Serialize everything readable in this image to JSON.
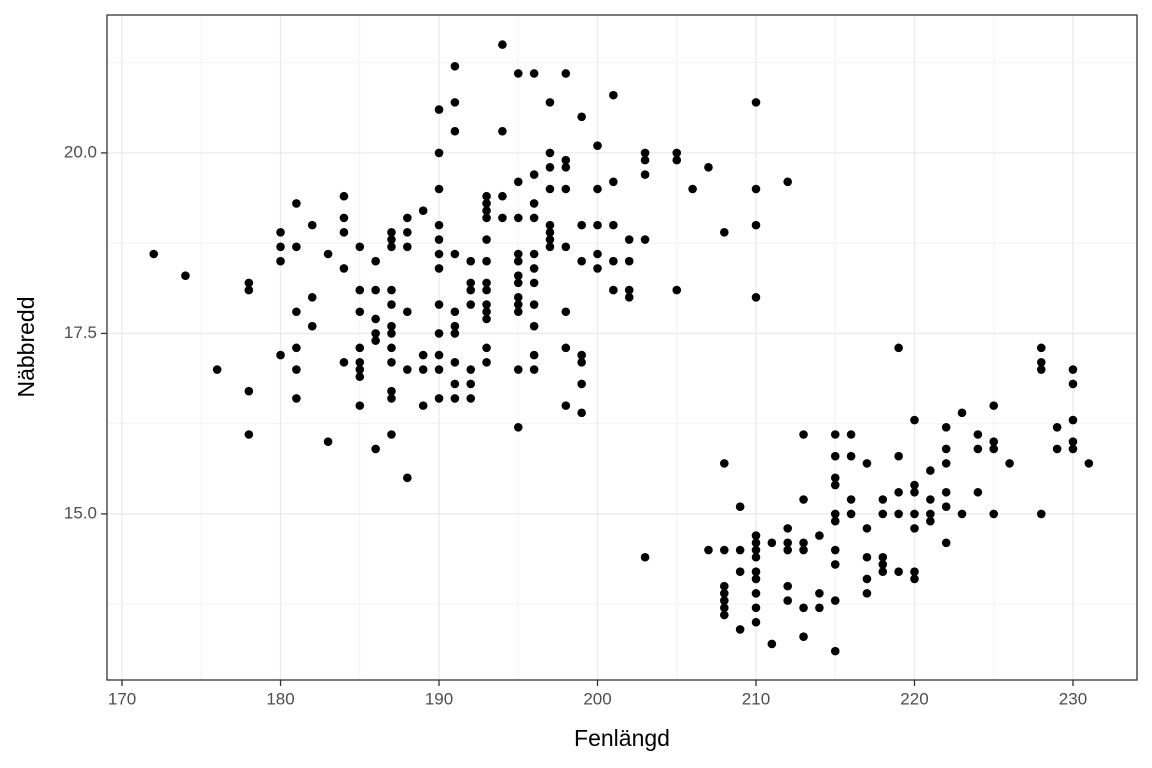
{
  "chart_data": {
    "type": "scatter",
    "x_label": "Fenlängd",
    "y_label": "Näbbredd",
    "xlim": [
      169.05,
      234.04
    ],
    "ylim": [
      12.7,
      21.91
    ],
    "xticks": [
      170,
      180,
      190,
      200,
      210,
      220,
      230
    ],
    "yticks": [
      {
        "value": 15,
        "label": "15.0"
      },
      17.5,
      {
        "value": 20,
        "label": "20.0"
      }
    ],
    "xminor": [
      175,
      185,
      195,
      205,
      215,
      225
    ],
    "yminor": [
      13.75,
      16.25,
      18.75,
      21.25
    ],
    "grid": true,
    "color": "#000000",
    "series": [
      {
        "x": [
          172,
          174,
          176,
          178,
          178,
          178,
          178,
          180,
          180,
          180,
          180,
          181,
          181,
          181,
          181,
          181,
          181,
          182,
          182,
          182,
          183,
          183,
          184,
          184,
          184,
          184,
          184,
          185,
          185,
          185,
          185,
          185,
          185,
          185,
          185,
          186,
          186,
          186,
          186,
          186,
          186,
          187,
          187,
          187,
          187,
          187,
          187,
          187,
          187,
          187,
          187,
          187,
          187,
          188,
          188,
          188,
          188,
          188,
          188,
          189,
          189,
          189,
          189,
          190,
          190,
          190,
          190,
          190,
          190,
          190,
          190,
          190,
          190,
          190,
          190,
          191,
          191,
          191,
          191,
          191,
          191,
          191,
          191,
          191,
          191,
          192,
          192,
          192,
          192,
          192,
          192,
          192,
          193,
          193,
          193,
          193,
          193,
          193,
          193,
          193,
          193,
          193,
          193,
          193,
          193,
          194,
          194,
          194,
          194,
          195,
          195,
          195,
          195,
          195,
          195,
          195,
          195,
          195,
          195,
          195,
          195,
          196,
          196,
          196,
          196,
          196,
          196,
          196,
          196,
          196,
          196,
          196,
          197,
          197,
          197,
          197,
          197,
          197,
          197,
          197,
          198,
          198,
          198,
          198,
          198,
          198,
          198,
          198,
          199,
          199,
          199,
          199,
          199,
          199,
          199,
          200,
          200,
          200,
          200,
          200,
          201,
          201,
          201,
          201,
          201,
          202,
          202,
          202,
          202,
          203,
          203,
          203,
          203,
          203,
          205,
          205,
          205,
          206,
          207,
          207,
          208,
          208,
          208,
          208,
          208,
          208,
          208,
          208,
          209,
          209,
          209,
          209,
          210,
          210,
          210,
          210,
          210,
          210,
          210,
          210,
          210,
          210,
          210,
          210,
          210,
          211,
          211,
          212,
          212,
          212,
          212,
          212,
          212,
          213,
          213,
          213,
          213,
          213,
          213,
          214,
          214,
          214,
          215,
          215,
          215,
          215,
          215,
          215,
          215,
          215,
          215,
          215,
          216,
          216,
          216,
          216,
          217,
          217,
          217,
          217,
          217,
          218,
          218,
          218,
          218,
          218,
          219,
          219,
          219,
          219,
          219,
          220,
          220,
          220,
          220,
          220,
          220,
          220,
          221,
          221,
          221,
          221,
          222,
          222,
          222,
          222,
          222,
          222,
          223,
          223,
          224,
          224,
          224,
          225,
          225,
          225,
          225,
          226,
          228,
          228,
          228,
          228,
          229,
          229,
          230,
          230,
          230,
          230,
          230,
          231
        ],
        "y": [
          18.6,
          18.3,
          17.0,
          18.2,
          18.1,
          16.7,
          16.1,
          18.9,
          18.7,
          18.5,
          17.2,
          19.3,
          18.7,
          17.8,
          17.3,
          17.0,
          16.6,
          19.0,
          18.0,
          17.6,
          18.6,
          16.0,
          19.4,
          19.1,
          18.9,
          18.4,
          17.1,
          18.7,
          18.1,
          17.8,
          17.3,
          17.1,
          17.0,
          16.9,
          16.5,
          18.5,
          18.1,
          17.7,
          17.5,
          17.4,
          15.9,
          18.9,
          18.8,
          18.7,
          18.1,
          17.9,
          17.6,
          17.5,
          17.3,
          17.1,
          16.7,
          16.6,
          16.1,
          19.1,
          18.9,
          18.7,
          17.8,
          17.0,
          15.5,
          19.2,
          17.2,
          17.0,
          16.5,
          20.6,
          20.0,
          19.5,
          19.0,
          18.8,
          18.6,
          18.4,
          17.9,
          17.5,
          17.2,
          17.0,
          16.6,
          21.2,
          20.7,
          20.3,
          18.6,
          17.8,
          17.6,
          17.5,
          17.1,
          16.8,
          16.6,
          18.5,
          18.2,
          18.1,
          17.9,
          17.0,
          16.8,
          16.6,
          19.4,
          19.3,
          19.2,
          19.1,
          18.8,
          18.5,
          18.2,
          18.1,
          17.9,
          17.8,
          17.7,
          17.3,
          17.1,
          21.5,
          20.3,
          19.4,
          19.1,
          21.1,
          19.6,
          19.1,
          18.6,
          18.5,
          18.3,
          18.2,
          18.0,
          17.9,
          17.8,
          17.0,
          16.2,
          21.1,
          19.7,
          19.3,
          19.1,
          18.6,
          18.4,
          18.2,
          17.9,
          17.6,
          17.2,
          17.0,
          20.7,
          20.0,
          19.8,
          19.5,
          19.0,
          18.9,
          18.8,
          18.7,
          21.1,
          19.9,
          19.8,
          19.5,
          18.7,
          17.8,
          17.3,
          16.5,
          20.5,
          19.0,
          18.5,
          17.2,
          17.1,
          16.8,
          16.4,
          20.1,
          19.5,
          19.0,
          18.6,
          18.4,
          20.8,
          19.6,
          19.0,
          18.5,
          18.1,
          18.8,
          18.5,
          18.1,
          18.0,
          20.0,
          19.9,
          19.7,
          18.8,
          14.4,
          20.0,
          19.9,
          18.1,
          19.5,
          19.8,
          14.5,
          18.9,
          15.7,
          14.5,
          14.0,
          13.9,
          13.8,
          13.7,
          13.6,
          15.1,
          14.5,
          14.2,
          13.4,
          20.7,
          19.5,
          19.0,
          18.0,
          14.7,
          14.6,
          14.5,
          14.4,
          14.2,
          14.1,
          13.9,
          13.7,
          13.5,
          14.6,
          13.2,
          19.6,
          14.8,
          14.6,
          14.5,
          14.0,
          13.8,
          16.1,
          15.2,
          14.6,
          14.5,
          13.7,
          13.3,
          14.7,
          13.9,
          13.7,
          16.1,
          15.8,
          15.5,
          15.4,
          15.0,
          14.9,
          14.5,
          14.3,
          13.8,
          13.1,
          16.1,
          15.8,
          15.2,
          15.0,
          15.7,
          14.8,
          14.4,
          14.1,
          13.9,
          15.2,
          15.0,
          14.4,
          14.3,
          14.2,
          17.3,
          15.8,
          15.3,
          15.0,
          14.2,
          16.3,
          15.4,
          15.3,
          15.0,
          14.8,
          14.2,
          14.1,
          15.6,
          15.2,
          15.0,
          14.9,
          16.2,
          15.9,
          15.7,
          15.3,
          15.1,
          14.6,
          16.4,
          15.0,
          16.1,
          15.9,
          15.3,
          16.5,
          16.0,
          15.9,
          15.0,
          15.7,
          17.3,
          17.1,
          17.0,
          15.0,
          16.2,
          15.9,
          17.0,
          16.8,
          16.3,
          16.0,
          15.9,
          15.7
        ]
      }
    ]
  }
}
